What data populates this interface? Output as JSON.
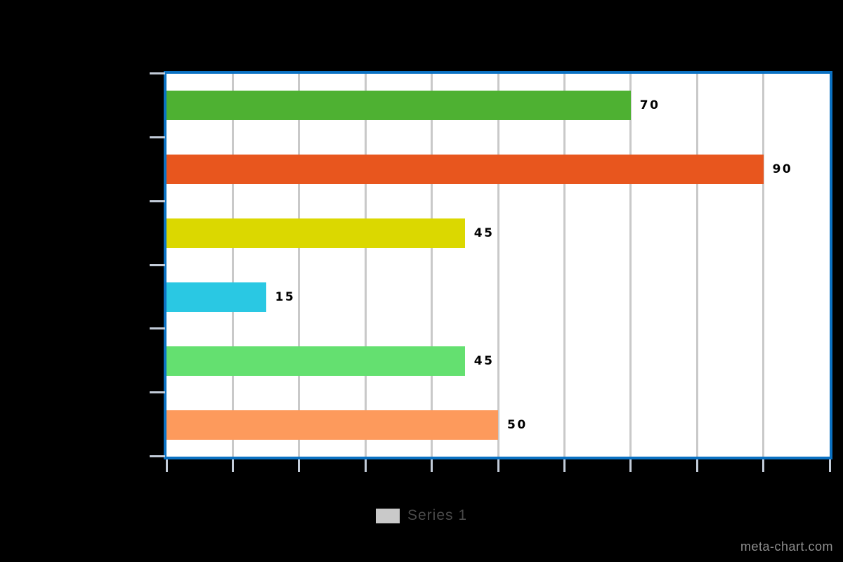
{
  "chart_data": {
    "type": "bar",
    "orientation": "horizontal",
    "title": "",
    "xlabel": "",
    "ylabel": "",
    "categories": [
      "",
      "",
      "",
      "",
      "",
      ""
    ],
    "series": [
      {
        "name": "Series 1",
        "values": [
          70,
          90,
          45,
          15,
          45,
          50
        ]
      }
    ],
    "data_labels": [
      "70",
      "90",
      "45",
      "15",
      "45",
      "50"
    ],
    "bar_colors": [
      "#4EB132",
      "#E8561E",
      "#DBD800",
      "#2AC8E3",
      "#64E070",
      "#FD9A5C"
    ],
    "xlim": [
      0,
      100
    ],
    "grid": true,
    "grid_step": 10,
    "legend_position": "bottom"
  },
  "colors": {
    "background": "#000000",
    "plot_background": "#ffffff",
    "plot_border": "#0B71C2",
    "gridline": "#C9C9C9",
    "tick": "#C3CCD9",
    "value_label": "#000000",
    "legend_swatch": "#C9C9C9",
    "legend_text": "#4A4A4A",
    "watermark_text": "#909090"
  },
  "legend": {
    "label": "Series 1"
  },
  "watermark": "meta-chart.com"
}
